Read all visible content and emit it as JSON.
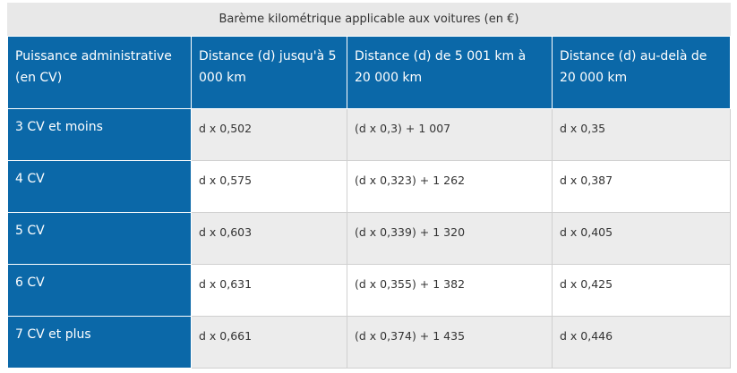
{
  "table": {
    "caption": "Barème kilométrique applicable aux voitures (en €)",
    "headers": [
      "Puissance administrative (en CV)",
      "Distance (d) jusqu'à 5 000 km",
      "Distance (d) de 5 001 km à 20 000 km",
      "Distance (d) au-delà de 20 000 km"
    ],
    "rows": [
      [
        "3 CV et moins",
        "d x 0,502",
        "(d x 0,3) + 1 007",
        "d x 0,35"
      ],
      [
        "4 CV",
        "d x 0,575",
        "(d x 0,323) + 1 262",
        "d x 0,387"
      ],
      [
        "5 CV",
        "d x 0,603",
        "(d x 0,339) + 1 320",
        "d x 0,405"
      ],
      [
        "6 CV",
        "d x 0,631",
        "(d x 0,355) + 1 382",
        "d x 0,425"
      ],
      [
        "7 CV et plus",
        "d x 0,661",
        "(d x 0,374) + 1 435",
        "d x 0,446"
      ]
    ]
  },
  "colors": {
    "header": "#0b68a8",
    "caption_bg": "#e8e8e8",
    "stripe": "#ececec"
  }
}
